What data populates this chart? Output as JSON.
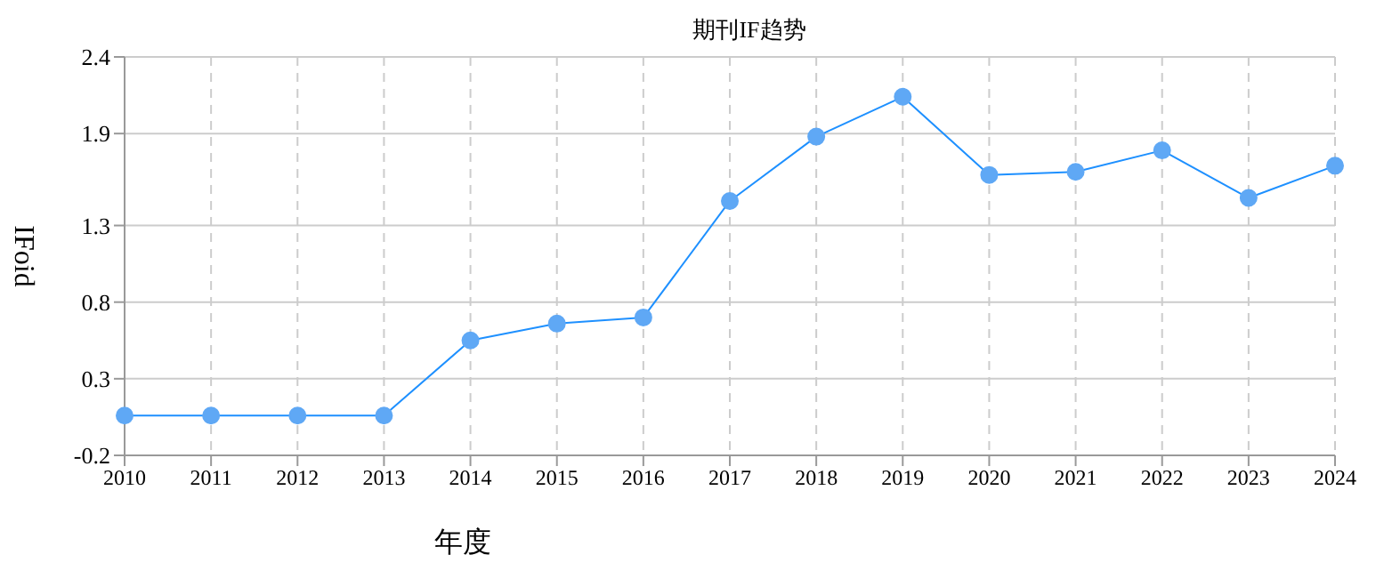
{
  "chart_data": {
    "type": "line",
    "title": "期刊IF趋势",
    "xlabel": "年度",
    "ylabel": "IFoid",
    "categories": [
      "2010",
      "2011",
      "2012",
      "2013",
      "2014",
      "2015",
      "2016",
      "2017",
      "2018",
      "2019",
      "2020",
      "2021",
      "2022",
      "2023",
      "2024"
    ],
    "series": [
      {
        "color": "#1e90ff",
        "values": [
          0.06,
          0.06,
          0.06,
          0.06,
          0.55,
          0.66,
          0.7,
          1.46,
          1.88,
          2.14,
          1.63,
          1.65,
          1.79,
          1.48,
          1.69
        ]
      }
    ],
    "ylim": [
      -0.2,
      2.4
    ],
    "yticks": [
      -0.2,
      0.3,
      0.8,
      1.3,
      1.9,
      2.4
    ],
    "grid": true,
    "marker": "circle",
    "line_style": "solid"
  }
}
